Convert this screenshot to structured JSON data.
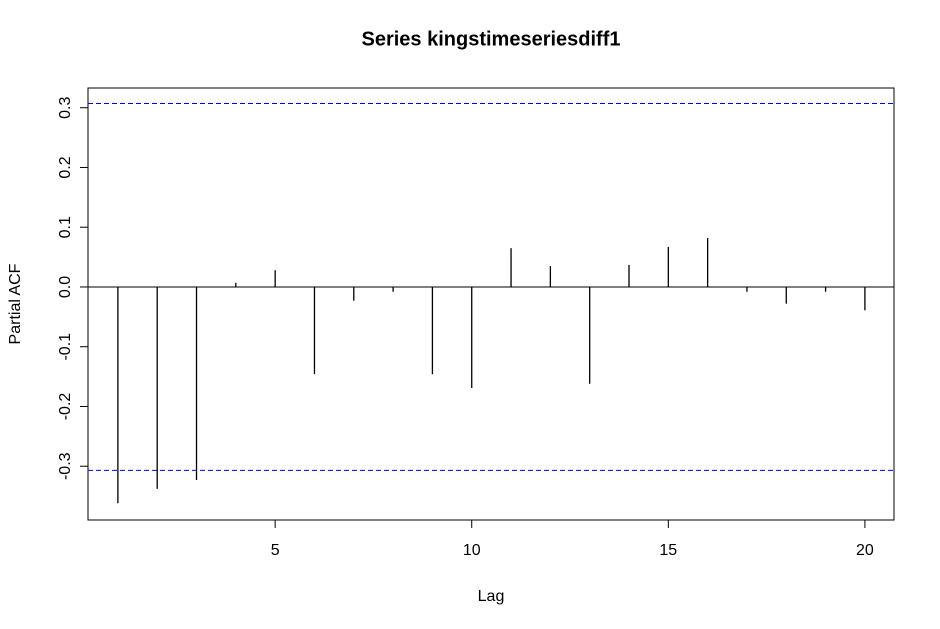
{
  "chart_data": {
    "type": "stem",
    "title": "Series  kingstimeseriesdiff1",
    "x_label": "Lag",
    "y_label": "Partial ACF",
    "x": [
      1,
      2,
      3,
      4,
      5,
      6,
      7,
      8,
      9,
      10,
      11,
      12,
      13,
      14,
      15,
      16,
      17,
      18,
      19,
      20
    ],
    "values": [
      -0.362,
      -0.338,
      -0.323,
      0.007,
      0.028,
      -0.146,
      -0.023,
      -0.008,
      -0.146,
      -0.169,
      0.065,
      0.035,
      -0.162,
      0.037,
      0.067,
      0.082,
      -0.008,
      -0.028,
      -0.008,
      -0.039
    ],
    "color": "#000000",
    "ci_lines": [
      0.307,
      -0.307
    ],
    "ci_color": "#0000ff",
    "xlim": [
      0.24,
      20.74
    ],
    "xticks": [
      5,
      10,
      15,
      20
    ],
    "ylim": [
      -0.39,
      0.333
    ],
    "yticks": [
      -0.3,
      -0.2,
      -0.1,
      {
        "value": 0,
        "label": "0.0"
      },
      0.1,
      0.2,
      0.3
    ]
  }
}
